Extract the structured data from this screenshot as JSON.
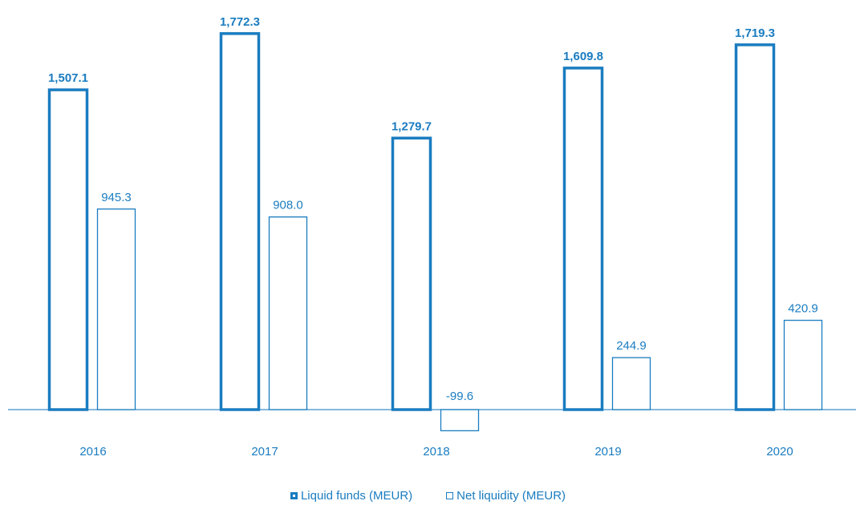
{
  "chart_data": {
    "type": "bar",
    "categories": [
      "2016",
      "2017",
      "2018",
      "2019",
      "2020"
    ],
    "series": [
      {
        "name": "Liquid funds (MEUR)",
        "values": [
          1507.1,
          1772.3,
          1279.7,
          1609.8,
          1719.3
        ],
        "labels": [
          "1,507.1",
          "1,772.3",
          "1,279.7",
          "1,609.8",
          "1,719.3"
        ],
        "style": "thick-outline-bold-label"
      },
      {
        "name": "Net liquidity (MEUR)",
        "values": [
          945.3,
          908.0,
          -99.6,
          244.9,
          420.9
        ],
        "labels": [
          "945.3",
          "908.0",
          "-99.6",
          "244.9",
          "420.9"
        ],
        "style": "thin-outline"
      }
    ],
    "title": "",
    "xlabel": "",
    "ylabel": "",
    "grid": false,
    "legend_position": "bottom",
    "colors": {
      "primary": "#1a7cc0",
      "baseline": "#3a8fc9"
    }
  }
}
